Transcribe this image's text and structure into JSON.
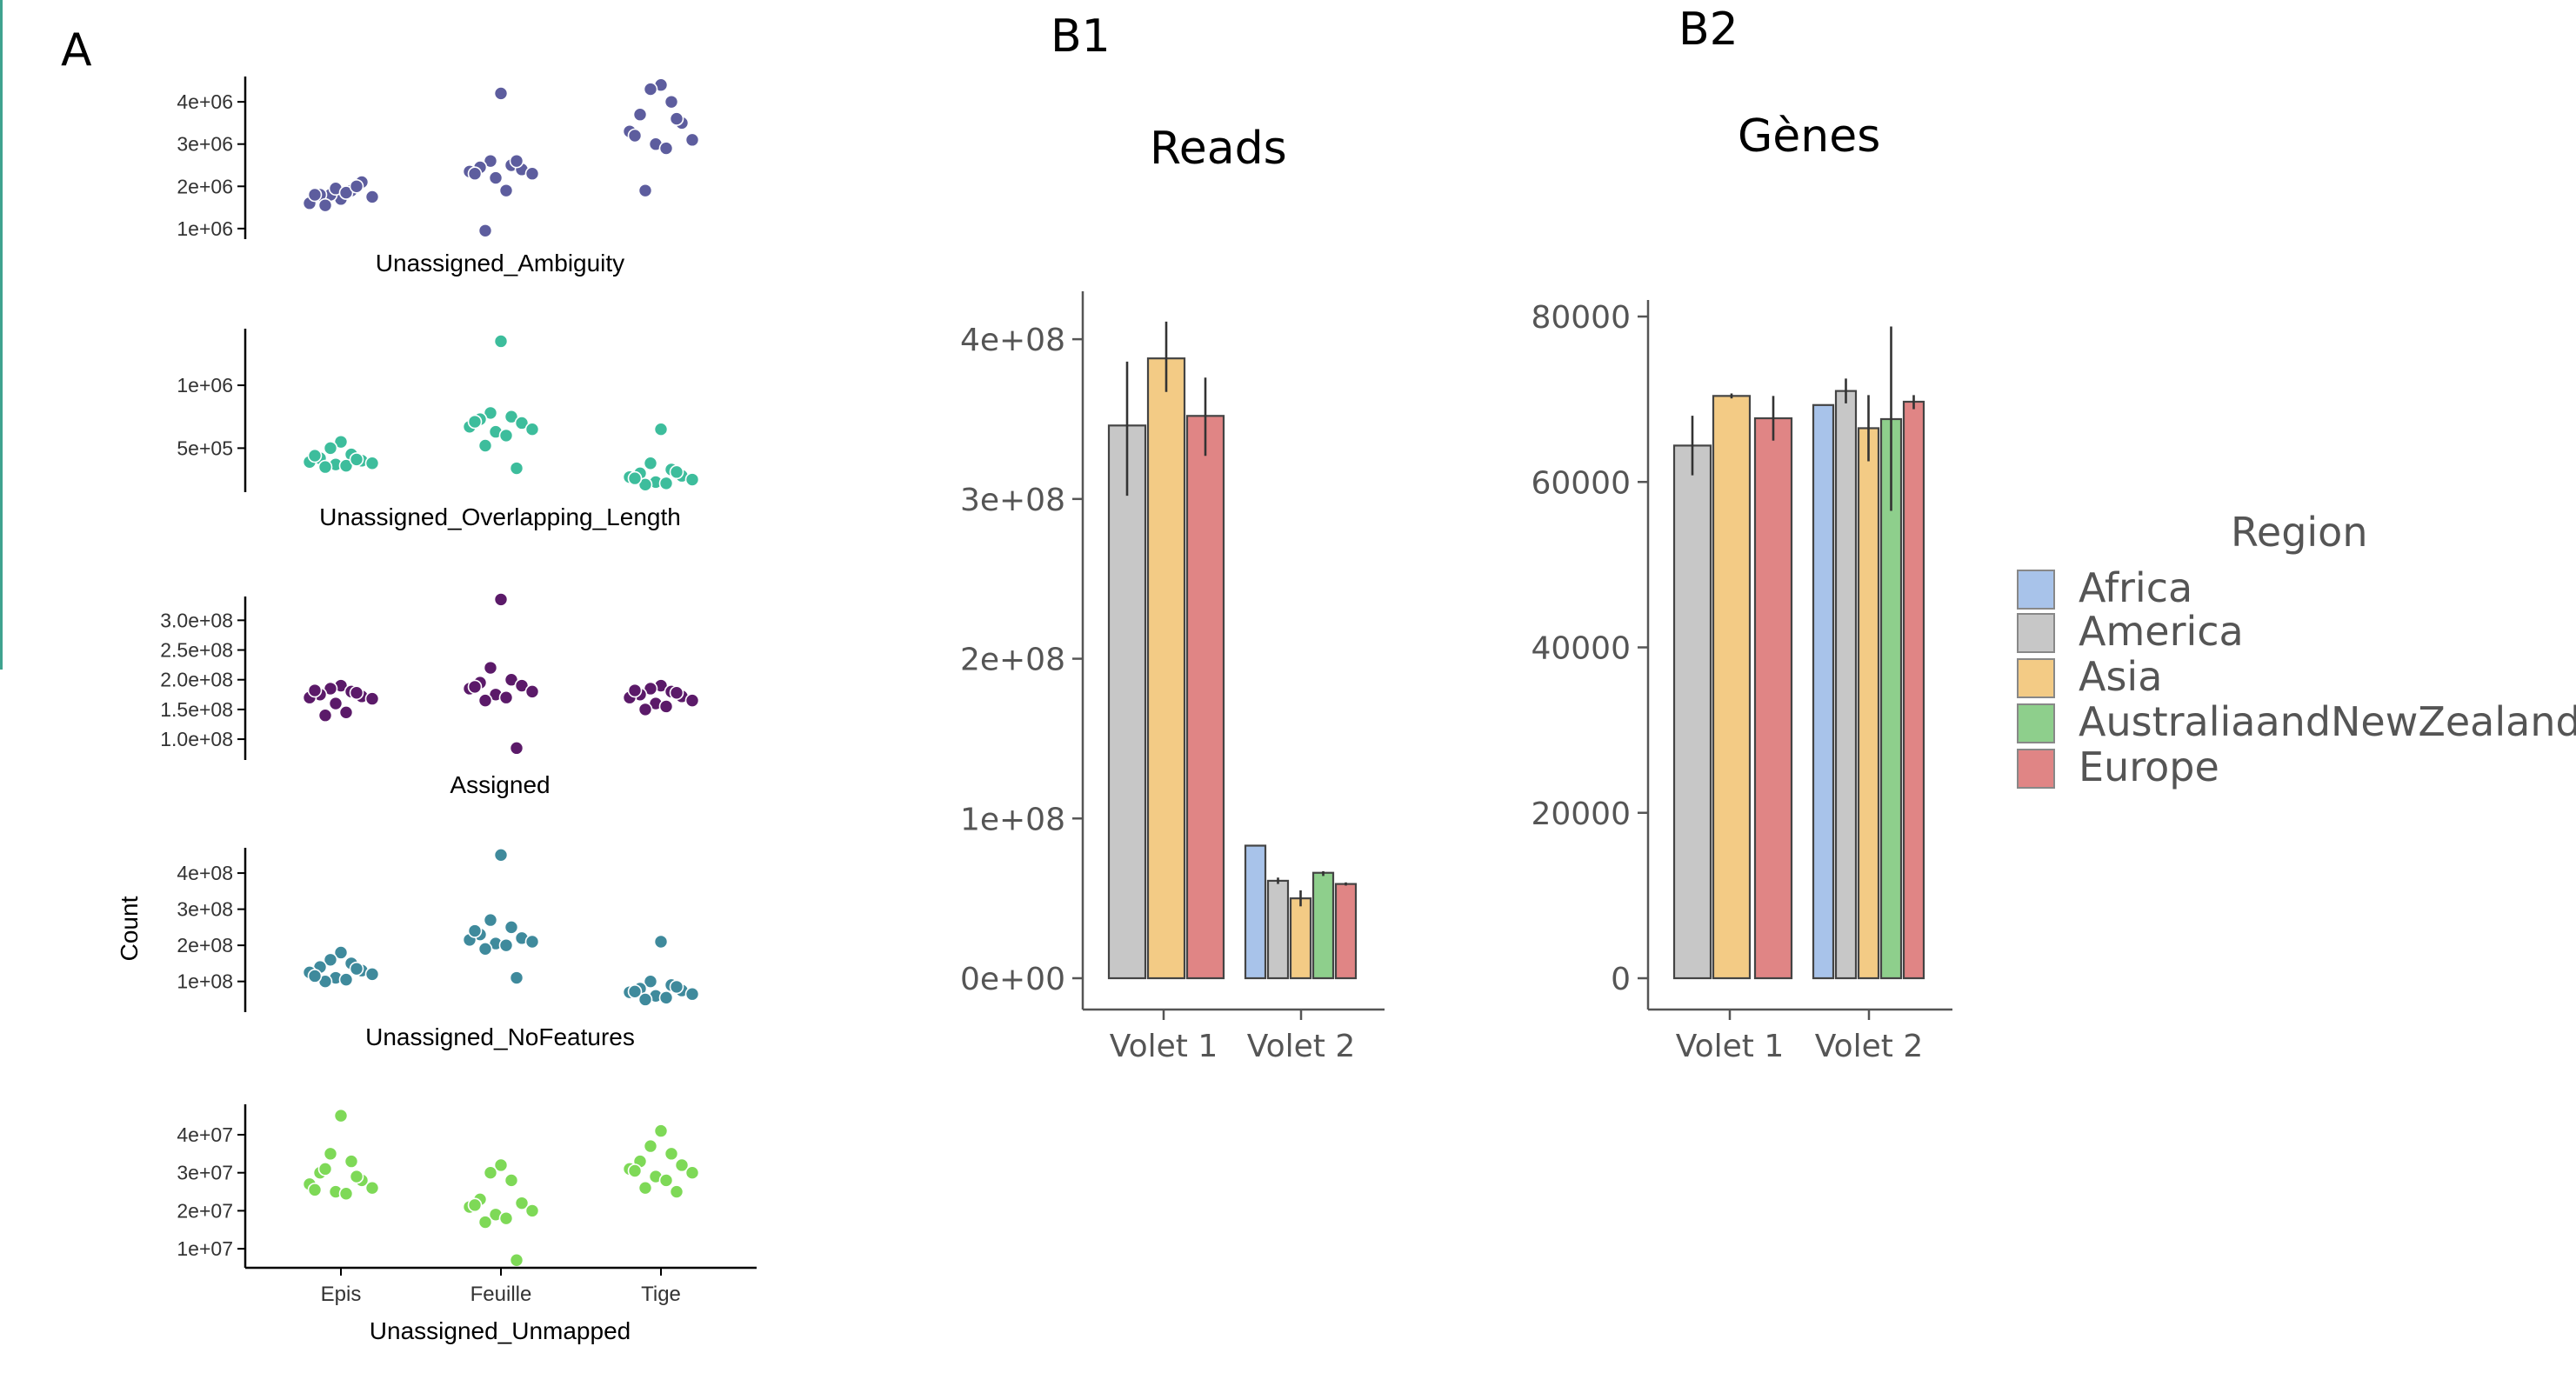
{
  "panels": {
    "a": "A",
    "b1": "B1",
    "b2": "B2"
  },
  "colors": {
    "ambiguity": "#5d5d9e",
    "overlap": "#3dbd9c",
    "assigned": "#5b1a69",
    "nofeatures": "#3f8a9c",
    "unmapped": "#7ed957",
    "Africa": "#a8c3ea",
    "America": "#c7c7c7",
    "Asia": "#f3cb85",
    "AustraliaandNewZealand": "#8ecf8c",
    "Europe": "#e08585",
    "side_rule": "#3fa38f"
  },
  "chart_data": [
    {
      "type": "scatter",
      "title": "Unassigned_Ambiguity",
      "categories": [
        "Epis",
        "Feuille",
        "Tige"
      ],
      "ylim": [
        750000,
        4600000
      ],
      "yticks": [
        {
          "v": 4000000,
          "label": "4e+06"
        },
        {
          "v": 3000000,
          "label": "3e+06"
        },
        {
          "v": 2000000,
          "label": "2e+06"
        },
        {
          "v": 1000000,
          "label": "1e+06"
        }
      ],
      "show_x_axis": false,
      "color_key": "ambiguity",
      "points": [
        [
          1700000.0,
          1800000.0,
          1900000.0,
          1800000.0,
          2100000.0,
          1600000.0,
          1750000.0,
          1950000.0,
          1850000.0,
          1550000.0,
          2000000.0,
          1800000.0
        ],
        [
          4200000.0,
          2600000.0,
          2500000.0,
          2450000.0,
          2400000.0,
          2350000.0,
          2300000.0,
          2200000.0,
          1900000.0,
          950000.0,
          2600000.0,
          2300000.0
        ],
        [
          4400000.0,
          4300000.0,
          4000000.0,
          3700000.0,
          3500000.0,
          3300000.0,
          3100000.0,
          3000000.0,
          2900000.0,
          1900000.0,
          3600000.0,
          3200000.0
        ]
      ]
    },
    {
      "type": "scatter",
      "title": "Unassigned_Overlapping_Length",
      "categories": [
        "Epis",
        "Feuille",
        "Tige"
      ],
      "ylim": [
        150000,
        1450000
      ],
      "yticks": [
        {
          "v": 1000000,
          "label": "1e+06"
        },
        {
          "v": 500000,
          "label": "5e+05"
        }
      ],
      "show_x_axis": false,
      "color_key": "overlap",
      "points": [
        [
          550000.0,
          500000.0,
          450000.0,
          420000.0,
          400000.0,
          390000.0,
          380000.0,
          370000.0,
          360000.0,
          350000.0,
          410000.0,
          440000.0
        ],
        [
          1350000.0,
          780000.0,
          750000.0,
          730000.0,
          700000.0,
          670000.0,
          650000.0,
          630000.0,
          600000.0,
          520000.0,
          340000.0,
          710000.0
        ],
        [
          650000.0,
          380000.0,
          330000.0,
          300000.0,
          280000.0,
          270000.0,
          250000.0,
          230000.0,
          220000.0,
          210000.0,
          310000.0,
          260000.0
        ]
      ]
    },
    {
      "type": "scatter",
      "title": "Assigned",
      "categories": [
        "Epis",
        "Feuille",
        "Tige"
      ],
      "ylim": [
        65000000,
        340000000
      ],
      "yticks": [
        {
          "v": 300000000,
          "label": "3.0e+08"
        },
        {
          "v": 250000000,
          "label": "2.5e+08"
        },
        {
          "v": 200000000,
          "label": "2.0e+08"
        },
        {
          "v": 150000000,
          "label": "1.5e+08"
        },
        {
          "v": 100000000,
          "label": "1.0e+08"
        }
      ],
      "show_x_axis": false,
      "color_key": "assigned",
      "points": [
        [
          190000000.0,
          185000000.0,
          180000000.0,
          175000000.0,
          172000000.0,
          170000000.0,
          168000000.0,
          160000000.0,
          145000000.0,
          140000000.0,
          178000000.0,
          182000000.0
        ],
        [
          335000000.0,
          220000000.0,
          200000000.0,
          195000000.0,
          190000000.0,
          185000000.0,
          180000000.0,
          175000000.0,
          170000000.0,
          165000000.0,
          85000000.0,
          188000000.0
        ],
        [
          190000000.0,
          185000000.0,
          180000000.0,
          175000000.0,
          172000000.0,
          170000000.0,
          165000000.0,
          160000000.0,
          155000000.0,
          150000000.0,
          178000000.0,
          182000000.0
        ]
      ]
    },
    {
      "type": "scatter",
      "title": "Unassigned_NoFeatures",
      "categories": [
        "Epis",
        "Feuille",
        "Tige"
      ],
      "ylim": [
        15000000,
        470000000
      ],
      "yticks": [
        {
          "v": 400000000,
          "label": "4e+08"
        },
        {
          "v": 300000000,
          "label": "3e+08"
        },
        {
          "v": 200000000,
          "label": "2e+08"
        },
        {
          "v": 100000000,
          "label": "1e+08"
        }
      ],
      "show_x_axis": false,
      "color_key": "nofeatures",
      "points": [
        [
          180000000.0,
          160000000.0,
          150000000.0,
          140000000.0,
          130000000.0,
          125000000.0,
          120000000.0,
          110000000.0,
          105000000.0,
          100000000.0,
          135000000.0,
          115000000.0
        ],
        [
          450000000.0,
          270000000.0,
          250000000.0,
          230000000.0,
          220000000.0,
          215000000.0,
          210000000.0,
          205000000.0,
          200000000.0,
          190000000.0,
          110000000.0,
          240000000.0
        ],
        [
          210000000.0,
          100000000.0,
          90000000.0,
          80000000.0,
          75000000.0,
          70000000.0,
          65000000.0,
          60000000.0,
          55000000.0,
          50000000.0,
          85000000.0,
          72000000.0
        ]
      ]
    },
    {
      "type": "scatter",
      "title": "Unassigned_Unmapped",
      "ylabel": "Count",
      "categories": [
        "Epis",
        "Feuille",
        "Tige"
      ],
      "ylim": [
        5000000,
        48000000
      ],
      "yticks": [
        {
          "v": 40000000,
          "label": "4e+07"
        },
        {
          "v": 30000000,
          "label": "3e+07"
        },
        {
          "v": 20000000,
          "label": "2e+07"
        },
        {
          "v": 10000000,
          "label": "1e+07"
        }
      ],
      "show_x_axis": true,
      "color_key": "unmapped",
      "points": [
        [
          45000000.0,
          35000000.0,
          33000000.0,
          30000000.0,
          28000000.0,
          27000000.0,
          26000000.0,
          25000000.0,
          24500000.0,
          31000000.0,
          29000000.0,
          25500000.0
        ],
        [
          32000000.0,
          30000000.0,
          28000000.0,
          23000000.0,
          22000000.0,
          21000000.0,
          20000000.0,
          19000000.0,
          18000000.0,
          17000000.0,
          7000000.0,
          21500000.0
        ],
        [
          41000000.0,
          37000000.0,
          35000000.0,
          33000000.0,
          32000000.0,
          31000000.0,
          30000000.0,
          29000000.0,
          28000000.0,
          26000000.0,
          25000000.0,
          30500000.0
        ]
      ]
    },
    {
      "type": "bar",
      "title": "Reads",
      "categories": [
        "Volet 1",
        "Volet 2"
      ],
      "ylim": [
        0,
        430000000
      ],
      "yticks": [
        {
          "v": 400000000,
          "label": "4e+08"
        },
        {
          "v": 300000000,
          "label": "3e+08"
        },
        {
          "v": 200000000,
          "label": "2e+08"
        },
        {
          "v": 100000000,
          "label": "1e+08"
        },
        {
          "v": 0,
          "label": "0e+00"
        }
      ],
      "series": [
        {
          "name": "Africa",
          "values": [
            null,
            83000000
          ],
          "err": [
            null,
            null
          ]
        },
        {
          "name": "America",
          "values": [
            346000000,
            61000000
          ],
          "err": [
            [
              302000000,
              386000000
            ],
            [
              59000000,
              63000000
            ]
          ]
        },
        {
          "name": "Asia",
          "values": [
            388000000,
            50000000
          ],
          "err": [
            [
              367000000,
              411000000
            ],
            [
              45000000,
              55000000
            ]
          ]
        },
        {
          "name": "AustraliaandNewZealand",
          "values": [
            null,
            66000000
          ],
          "err": [
            null,
            [
              64000000,
              67000000
            ]
          ]
        },
        {
          "name": "Europe",
          "values": [
            352000000,
            59000000
          ],
          "err": [
            [
              327000000,
              376000000
            ],
            [
              58000000,
              60000000
            ]
          ]
        }
      ]
    },
    {
      "type": "bar",
      "title": "Gènes",
      "categories": [
        "Volet 1",
        "Volet 2"
      ],
      "ylim": [
        0,
        82000
      ],
      "yticks": [
        {
          "v": 80000,
          "label": "80000"
        },
        {
          "v": 60000,
          "label": "60000"
        },
        {
          "v": 40000,
          "label": "40000"
        },
        {
          "v": 20000,
          "label": "20000"
        },
        {
          "v": 0,
          "label": "0"
        }
      ],
      "legend_title": "Region",
      "legend": [
        "Africa",
        "America",
        "Asia",
        "AustraliaandNewZealand",
        "Europe"
      ],
      "legend_position": "right",
      "series": [
        {
          "name": "Africa",
          "values": [
            null,
            69300
          ],
          "err": [
            null,
            null
          ]
        },
        {
          "name": "America",
          "values": [
            64400,
            71000
          ],
          "err": [
            [
              60800,
              68000
            ],
            [
              69500,
              72500
            ]
          ]
        },
        {
          "name": "Asia",
          "values": [
            70400,
            66500
          ],
          "err": [
            [
              70100,
              70700
            ],
            [
              62500,
              70500
            ]
          ]
        },
        {
          "name": "AustraliaandNewZealand",
          "values": [
            null,
            67600
          ],
          "err": [
            null,
            [
              56500,
              78800
            ]
          ]
        },
        {
          "name": "Europe",
          "values": [
            67700,
            69700
          ],
          "err": [
            [
              65000,
              70400
            ],
            [
              68800,
              70500
            ]
          ]
        }
      ]
    }
  ]
}
